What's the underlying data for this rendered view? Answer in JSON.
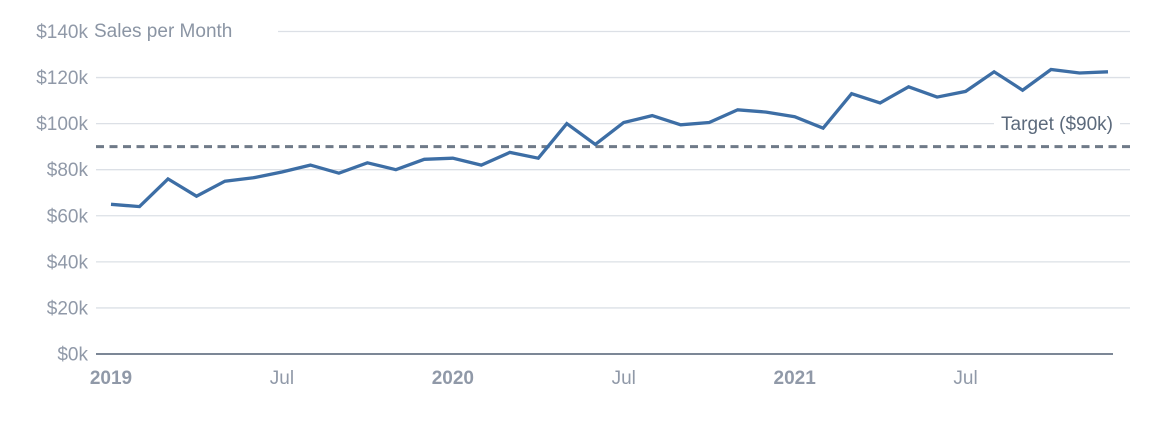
{
  "chart_data": {
    "type": "line",
    "title": "Sales per Month",
    "x": [
      "2019-01",
      "2019-02",
      "2019-03",
      "2019-04",
      "2019-05",
      "2019-06",
      "2019-07",
      "2019-08",
      "2019-09",
      "2019-10",
      "2019-11",
      "2019-12",
      "2020-01",
      "2020-02",
      "2020-03",
      "2020-04",
      "2020-05",
      "2020-06",
      "2020-07",
      "2020-08",
      "2020-09",
      "2020-10",
      "2020-11",
      "2020-12",
      "2021-01",
      "2021-02",
      "2021-03",
      "2021-04",
      "2021-05",
      "2021-06",
      "2021-07",
      "2021-08",
      "2021-09",
      "2021-10",
      "2021-11",
      "2021-12"
    ],
    "series": [
      {
        "name": "Sales per Month",
        "unit": "$k",
        "values": [
          65,
          64,
          76,
          68.5,
          75,
          76.5,
          79,
          82,
          78.5,
          83,
          80,
          84.5,
          85,
          82,
          87.5,
          85,
          100,
          91,
          100.5,
          103.5,
          99.5,
          100.5,
          106,
          105,
          103,
          98,
          113,
          109,
          116,
          111.5,
          114,
          122.5,
          114.5,
          123.5,
          122,
          122.5
        ]
      }
    ],
    "target": {
      "value": 90,
      "label": "Target ($90k)"
    },
    "ylim": [
      0,
      140
    ],
    "yticks": [
      {
        "value": 0,
        "label": "$0k"
      },
      {
        "value": 20,
        "label": "$20k"
      },
      {
        "value": 40,
        "label": "$40k"
      },
      {
        "value": 60,
        "label": "$60k"
      },
      {
        "value": 80,
        "label": "$80k"
      },
      {
        "value": 100,
        "label": "$100k"
      },
      {
        "value": 120,
        "label": "$120k"
      },
      {
        "value": 140,
        "label": "$140k"
      }
    ],
    "xticks": [
      {
        "index": 0,
        "label": "2019",
        "bold": true
      },
      {
        "index": 6,
        "label": "Jul",
        "bold": false
      },
      {
        "index": 12,
        "label": "2020",
        "bold": true
      },
      {
        "index": 18,
        "label": "Jul",
        "bold": false
      },
      {
        "index": 24,
        "label": "2021",
        "bold": true
      },
      {
        "index": 30,
        "label": "Jul",
        "bold": false
      }
    ],
    "grid": true,
    "legend": "none",
    "colors": {
      "line": "#3d6ea5",
      "target_line": "#6f7a88",
      "gridline": "#dce0e6",
      "baseline": "#7c8796",
      "tick_text": "#9099a8",
      "title_text": "#8b95a4",
      "target_text": "#5c6a7c"
    }
  }
}
